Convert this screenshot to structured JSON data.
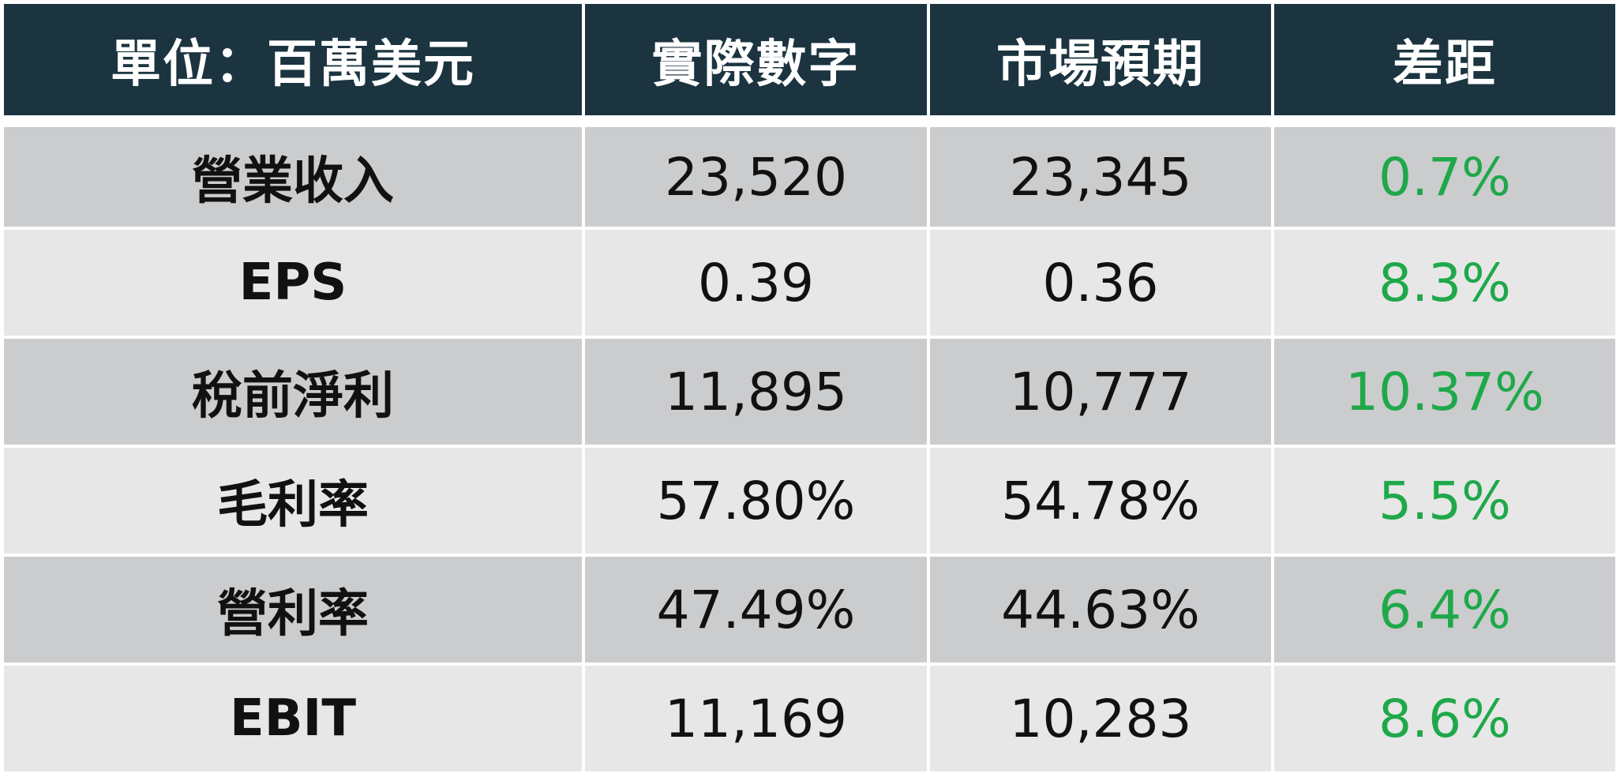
{
  "chart_data": {
    "type": "table",
    "columns": [
      "單位：百萬美元",
      "實際數字",
      "市場預期",
      "差距"
    ],
    "rows": [
      {
        "label": "營業收入",
        "actual": "23,520",
        "expected": "23,345",
        "diff": "0.7%"
      },
      {
        "label": "EPS",
        "actual": "0.39",
        "expected": "0.36",
        "diff": "8.3%"
      },
      {
        "label": "稅前淨利",
        "actual": "11,895",
        "expected": "10,777",
        "diff": "10.37%"
      },
      {
        "label": "毛利率",
        "actual": "57.80%",
        "expected": "54.78%",
        "diff": "5.5%"
      },
      {
        "label": "營利率",
        "actual": "47.49%",
        "expected": "44.63%",
        "diff": "6.4%"
      },
      {
        "label": "EBIT",
        "actual": "11,169",
        "expected": "10,283",
        "diff": "8.6%"
      }
    ]
  },
  "colors": {
    "header_bg": "#1b3440",
    "header_text": "#ffffff",
    "row_dark": "#cbcccd",
    "row_light": "#e6e7e6",
    "diff_text": "#1fa84a",
    "body_text": "#111111"
  }
}
